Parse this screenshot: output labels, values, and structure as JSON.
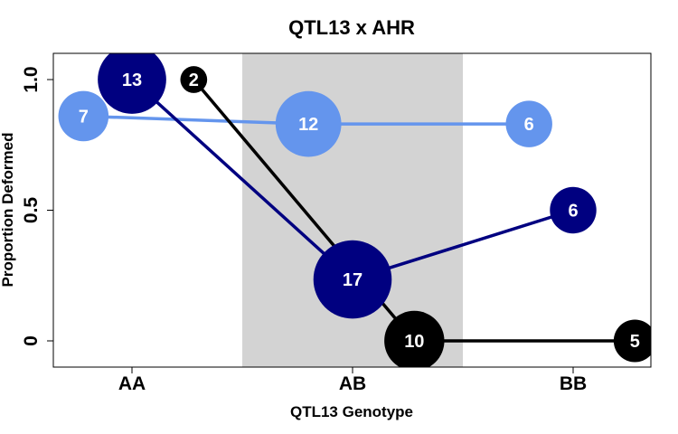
{
  "chart_data": {
    "type": "line",
    "title": "QTL13 x AHR",
    "xlabel": "QTL13 Genotype",
    "ylabel": "Proportion Deformed",
    "categories": [
      "AA",
      "AB",
      "BB"
    ],
    "yticks": [
      0,
      0.5,
      1.0
    ],
    "ytick_labels": [
      "0",
      "0.5",
      "1.0"
    ],
    "ylim": [
      -0.1,
      1.1
    ],
    "shaded_category": "AB",
    "shade_color": "#d3d3d3",
    "grid": false,
    "legend": "none",
    "series": [
      {
        "color": "#6495ed",
        "points": [
          {
            "x": 0.78,
            "y": 0.86,
            "n": "7"
          },
          {
            "x": 1.8,
            "y": 0.83,
            "n": "12"
          },
          {
            "x": 2.8,
            "y": 0.83,
            "n": "6"
          }
        ]
      },
      {
        "color": "#000080",
        "points": [
          {
            "x": 1.0,
            "y": 1.0,
            "n": "13"
          },
          {
            "x": 2.0,
            "y": 0.235,
            "n": "17"
          },
          {
            "x": 3.0,
            "y": 0.5,
            "n": "6"
          }
        ]
      },
      {
        "color": "#000000",
        "points": [
          {
            "x": 1.28,
            "y": 1.0,
            "n": "2"
          },
          {
            "x": 2.28,
            "y": 0.0,
            "n": "10"
          },
          {
            "x": 3.28,
            "y": 0.0,
            "n": "5"
          }
        ]
      }
    ]
  }
}
